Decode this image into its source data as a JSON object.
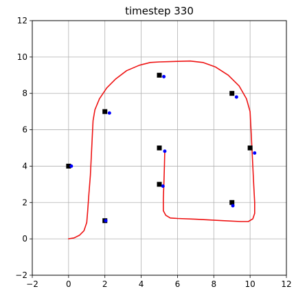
{
  "chart_data": {
    "type": "scatter",
    "title": "timestep  330",
    "xlabel": "",
    "ylabel": "",
    "xlim": [
      -2,
      12
    ],
    "ylim": [
      -2,
      12
    ],
    "xticks": [
      -2,
      0,
      2,
      4,
      6,
      8,
      10,
      12
    ],
    "yticks": [
      -2,
      0,
      2,
      4,
      6,
      8,
      10,
      12
    ],
    "grid": true,
    "legend": "none",
    "colors": {
      "trajectory": "#ee1111",
      "landmark_true": "#000000",
      "landmark_estimate": "#0000ff",
      "grid": "#b0b0b0"
    },
    "series": [
      {
        "kind": "trajectory",
        "marker": "line",
        "points": [
          [
            0.0,
            0.0
          ],
          [
            0.3,
            0.05
          ],
          [
            0.6,
            0.2
          ],
          [
            0.85,
            0.45
          ],
          [
            1.0,
            0.9
          ],
          [
            1.05,
            1.5
          ],
          [
            1.12,
            2.5
          ],
          [
            1.2,
            3.5
          ],
          [
            1.25,
            4.5
          ],
          [
            1.3,
            5.5
          ],
          [
            1.35,
            6.5
          ],
          [
            1.45,
            7.1
          ],
          [
            1.7,
            7.7
          ],
          [
            2.1,
            8.3
          ],
          [
            2.6,
            8.8
          ],
          [
            3.2,
            9.25
          ],
          [
            3.9,
            9.55
          ],
          [
            4.5,
            9.7
          ],
          [
            5.0,
            9.73
          ],
          [
            6.0,
            9.76
          ],
          [
            6.7,
            9.78
          ],
          [
            7.4,
            9.7
          ],
          [
            8.1,
            9.45
          ],
          [
            8.8,
            9.0
          ],
          [
            9.4,
            8.4
          ],
          [
            9.8,
            7.7
          ],
          [
            10.0,
            7.0
          ],
          [
            10.05,
            6.0
          ],
          [
            10.1,
            5.0
          ],
          [
            10.15,
            4.0
          ],
          [
            10.2,
            3.0
          ],
          [
            10.25,
            2.0
          ],
          [
            10.25,
            1.4
          ],
          [
            10.15,
            1.1
          ],
          [
            9.9,
            0.95
          ],
          [
            9.5,
            0.95
          ],
          [
            8.5,
            1.0
          ],
          [
            7.0,
            1.08
          ],
          [
            6.0,
            1.12
          ],
          [
            5.6,
            1.15
          ],
          [
            5.35,
            1.3
          ],
          [
            5.22,
            1.55
          ],
          [
            5.22,
            2.2
          ],
          [
            5.25,
            3.0
          ],
          [
            5.28,
            4.0
          ],
          [
            5.3,
            4.8
          ]
        ]
      },
      {
        "kind": "landmarks_true",
        "marker": "square",
        "points": [
          [
            0,
            4
          ],
          [
            2,
            1
          ],
          [
            2,
            7
          ],
          [
            5,
            3
          ],
          [
            5,
            5
          ],
          [
            5,
            9
          ],
          [
            9,
            2
          ],
          [
            9,
            8
          ],
          [
            10,
            5
          ]
        ]
      },
      {
        "kind": "landmarks_estimated",
        "marker": "dot",
        "points": [
          [
            0.15,
            4.0
          ],
          [
            2.05,
            1.0
          ],
          [
            2.25,
            6.92
          ],
          [
            5.2,
            2.9
          ],
          [
            5.3,
            4.82
          ],
          [
            5.25,
            8.92
          ],
          [
            9.05,
            1.82
          ],
          [
            9.25,
            7.8
          ],
          [
            10.25,
            4.72
          ]
        ]
      }
    ]
  }
}
